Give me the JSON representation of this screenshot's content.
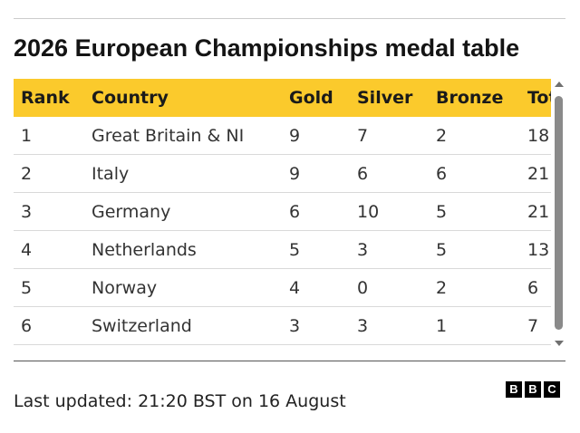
{
  "title": "2026 European Championships medal table",
  "table": {
    "headers": [
      "Rank",
      "Country",
      "Gold",
      "Silver",
      "Bronze",
      "Total"
    ],
    "rows": [
      [
        "1",
        "Great Britain & NI",
        "9",
        "7",
        "2",
        "18"
      ],
      [
        "2",
        "Italy",
        "9",
        "6",
        "6",
        "21"
      ],
      [
        "3",
        "Germany",
        "6",
        "10",
        "5",
        "21"
      ],
      [
        "4",
        "Netherlands",
        "5",
        "3",
        "5",
        "13"
      ],
      [
        "5",
        "Norway",
        "4",
        "0",
        "2",
        "6"
      ],
      [
        "6",
        "Switzerland",
        "3",
        "3",
        "1",
        "7"
      ]
    ]
  },
  "header_color": "#fbca2c",
  "footer": {
    "updated": "Last updated: 21:20 BST on 16 August",
    "logo": [
      "B",
      "B",
      "C"
    ]
  },
  "icons": {
    "scroll_up": "triangle-up-icon",
    "scroll_down": "triangle-down-icon"
  }
}
